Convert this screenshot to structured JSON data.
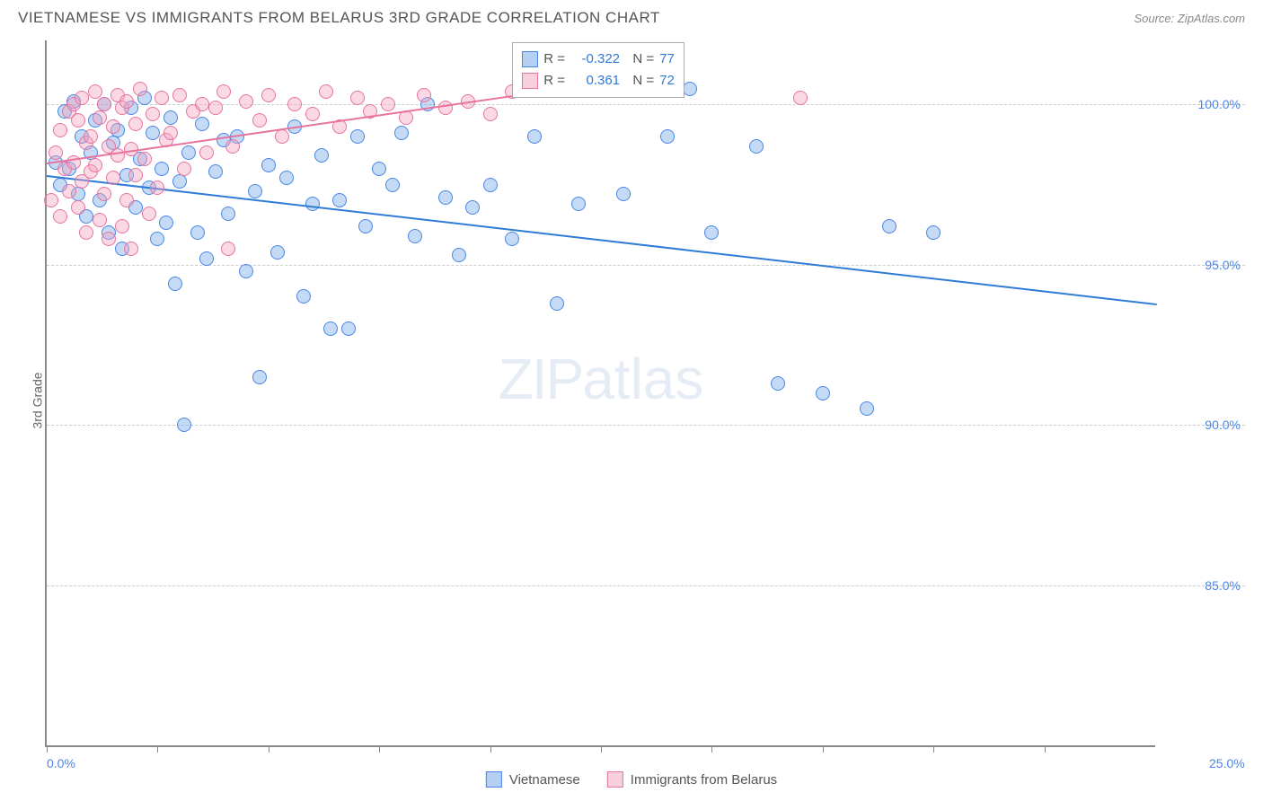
{
  "title": "VIETNAMESE VS IMMIGRANTS FROM BELARUS 3RD GRADE CORRELATION CHART",
  "source": "Source: ZipAtlas.com",
  "y_axis_label": "3rd Grade",
  "watermark_a": "ZIP",
  "watermark_b": "atlas",
  "chart": {
    "type": "scatter",
    "xlim": [
      0,
      25
    ],
    "ylim": [
      80,
      102
    ],
    "x_ticks": [
      0,
      2.5,
      5,
      7.5,
      10,
      12.5,
      15,
      17.5,
      20,
      22.5
    ],
    "x_tick_labels": {
      "0": "0.0%",
      "25": "25.0%"
    },
    "y_ticks": [
      85,
      90,
      95,
      100
    ],
    "y_tick_labels": {
      "85": "85.0%",
      "90": "90.0%",
      "95": "95.0%",
      "100": "100.0%"
    },
    "background_color": "#ffffff",
    "grid_color": "#cccccc",
    "axis_color": "#888888",
    "series": [
      {
        "name": "Vietnamese",
        "color_fill": "rgba(108,162,231,0.4)",
        "color_stroke": "#4a86e8",
        "trend_color": "#2e7cd6",
        "R": "-0.322",
        "N": "77",
        "trend": {
          "x1": 0,
          "y1": 97.8,
          "x2": 25,
          "y2": 93.8
        },
        "points": [
          [
            0.2,
            98.2
          ],
          [
            0.3,
            97.5
          ],
          [
            0.4,
            99.8
          ],
          [
            0.5,
            98.0
          ],
          [
            0.6,
            100.1
          ],
          [
            0.7,
            97.2
          ],
          [
            0.8,
            99.0
          ],
          [
            0.9,
            96.5
          ],
          [
            1.0,
            98.5
          ],
          [
            1.1,
            99.5
          ],
          [
            1.2,
            97.0
          ],
          [
            1.3,
            100.0
          ],
          [
            1.4,
            96.0
          ],
          [
            1.5,
            98.8
          ],
          [
            1.6,
            99.2
          ],
          [
            1.7,
            95.5
          ],
          [
            1.8,
            97.8
          ],
          [
            1.9,
            99.9
          ],
          [
            2.0,
            96.8
          ],
          [
            2.1,
            98.3
          ],
          [
            2.2,
            100.2
          ],
          [
            2.3,
            97.4
          ],
          [
            2.4,
            99.1
          ],
          [
            2.5,
            95.8
          ],
          [
            2.6,
            98.0
          ],
          [
            2.7,
            96.3
          ],
          [
            2.8,
            99.6
          ],
          [
            2.9,
            94.4
          ],
          [
            3.0,
            97.6
          ],
          [
            3.1,
            90.0
          ],
          [
            3.2,
            98.5
          ],
          [
            3.4,
            96.0
          ],
          [
            3.5,
            99.4
          ],
          [
            3.6,
            95.2
          ],
          [
            3.8,
            97.9
          ],
          [
            4.0,
            98.9
          ],
          [
            4.1,
            96.6
          ],
          [
            4.3,
            99.0
          ],
          [
            4.5,
            94.8
          ],
          [
            4.7,
            97.3
          ],
          [
            4.8,
            91.5
          ],
          [
            5.0,
            98.1
          ],
          [
            5.2,
            95.4
          ],
          [
            5.4,
            97.7
          ],
          [
            5.6,
            99.3
          ],
          [
            5.8,
            94.0
          ],
          [
            6.0,
            96.9
          ],
          [
            6.2,
            98.4
          ],
          [
            6.4,
            93.0
          ],
          [
            6.6,
            97.0
          ],
          [
            6.8,
            93.0
          ],
          [
            7.0,
            99.0
          ],
          [
            7.2,
            96.2
          ],
          [
            7.5,
            98.0
          ],
          [
            7.8,
            97.5
          ],
          [
            8.0,
            99.1
          ],
          [
            8.3,
            95.9
          ],
          [
            8.6,
            100.0
          ],
          [
            9.0,
            97.1
          ],
          [
            9.3,
            95.3
          ],
          [
            9.6,
            96.8
          ],
          [
            10.0,
            97.5
          ],
          [
            10.5,
            95.8
          ],
          [
            11.0,
            99.0
          ],
          [
            11.5,
            93.8
          ],
          [
            12.0,
            96.9
          ],
          [
            13.0,
            97.2
          ],
          [
            14.0,
            99.0
          ],
          [
            14.5,
            100.5
          ],
          [
            15.0,
            96.0
          ],
          [
            16.0,
            98.7
          ],
          [
            16.5,
            91.3
          ],
          [
            17.5,
            91.0
          ],
          [
            18.5,
            90.5
          ],
          [
            19.0,
            96.2
          ],
          [
            20.0,
            96.0
          ]
        ]
      },
      {
        "name": "Immigrants from Belarus",
        "color_fill": "rgba(242,160,189,0.4)",
        "color_stroke": "#e8739e",
        "trend_color": "#e8739e",
        "R": "0.361",
        "N": "72",
        "trend": {
          "x1": 0,
          "y1": 98.2,
          "x2": 10.5,
          "y2": 100.3
        },
        "points": [
          [
            0.1,
            97.0
          ],
          [
            0.2,
            98.5
          ],
          [
            0.3,
            99.2
          ],
          [
            0.3,
            96.5
          ],
          [
            0.4,
            98.0
          ],
          [
            0.5,
            99.8
          ],
          [
            0.5,
            97.3
          ],
          [
            0.6,
            100.0
          ],
          [
            0.6,
            98.2
          ],
          [
            0.7,
            96.8
          ],
          [
            0.7,
            99.5
          ],
          [
            0.8,
            97.6
          ],
          [
            0.8,
            100.2
          ],
          [
            0.9,
            98.8
          ],
          [
            0.9,
            96.0
          ],
          [
            1.0,
            99.0
          ],
          [
            1.0,
            97.9
          ],
          [
            1.1,
            100.4
          ],
          [
            1.1,
            98.1
          ],
          [
            1.2,
            96.4
          ],
          [
            1.2,
            99.6
          ],
          [
            1.3,
            97.2
          ],
          [
            1.3,
            100.0
          ],
          [
            1.4,
            98.7
          ],
          [
            1.4,
            95.8
          ],
          [
            1.5,
            99.3
          ],
          [
            1.5,
            97.7
          ],
          [
            1.6,
            100.3
          ],
          [
            1.6,
            98.4
          ],
          [
            1.7,
            96.2
          ],
          [
            1.7,
            99.9
          ],
          [
            1.8,
            97.0
          ],
          [
            1.8,
            100.1
          ],
          [
            1.9,
            98.6
          ],
          [
            1.9,
            95.5
          ],
          [
            2.0,
            99.4
          ],
          [
            2.0,
            97.8
          ],
          [
            2.1,
            100.5
          ],
          [
            2.2,
            98.3
          ],
          [
            2.3,
            96.6
          ],
          [
            2.4,
            99.7
          ],
          [
            2.5,
            97.4
          ],
          [
            2.6,
            100.2
          ],
          [
            2.7,
            98.9
          ],
          [
            2.8,
            99.1
          ],
          [
            3.0,
            100.3
          ],
          [
            3.1,
            98.0
          ],
          [
            3.3,
            99.8
          ],
          [
            3.5,
            100.0
          ],
          [
            3.6,
            98.5
          ],
          [
            3.8,
            99.9
          ],
          [
            4.0,
            100.4
          ],
          [
            4.1,
            95.5
          ],
          [
            4.2,
            98.7
          ],
          [
            4.5,
            100.1
          ],
          [
            4.8,
            99.5
          ],
          [
            5.0,
            100.3
          ],
          [
            5.3,
            99.0
          ],
          [
            5.6,
            100.0
          ],
          [
            6.0,
            99.7
          ],
          [
            6.3,
            100.4
          ],
          [
            6.6,
            99.3
          ],
          [
            7.0,
            100.2
          ],
          [
            7.3,
            99.8
          ],
          [
            7.7,
            100.0
          ],
          [
            8.1,
            99.6
          ],
          [
            8.5,
            100.3
          ],
          [
            9.0,
            99.9
          ],
          [
            9.5,
            100.1
          ],
          [
            10.0,
            99.7
          ],
          [
            10.5,
            100.4
          ],
          [
            17.0,
            100.2
          ]
        ]
      }
    ]
  },
  "legend_box": {
    "r_label": "R =",
    "n_label": "N ="
  },
  "bottom_legend": [
    "Vietnamese",
    "Immigrants from Belarus"
  ]
}
